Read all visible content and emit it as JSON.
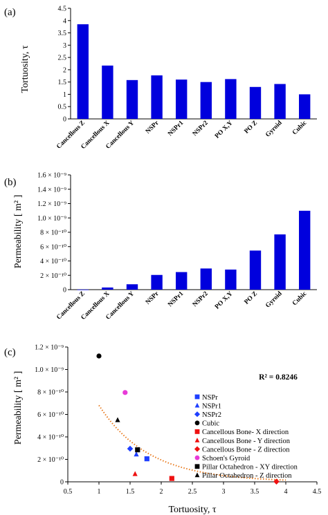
{
  "colors": {
    "bar": "#0000dd",
    "trend": "#e8791c",
    "axis": "#000000"
  },
  "chart_data": [
    {
      "type": "bar",
      "panel_label": "(a)",
      "categories": [
        "Cancellous Z",
        "Cancellous X",
        "Cancellous Y",
        "NSPr",
        "NSPr1",
        "NSPr2",
        "PO X,Y",
        "PO Z",
        "Gyroid",
        "Cubic"
      ],
      "values": [
        3.85,
        2.17,
        1.58,
        1.77,
        1.6,
        1.5,
        1.62,
        1.3,
        1.42,
        1.0
      ],
      "ylabel": "Tortuosity, τ",
      "ylim": [
        0,
        4.5
      ],
      "yticks": [
        "0",
        "0.5",
        "1",
        "1.5",
        "2",
        "2.5",
        "3",
        "3.5",
        "4",
        "4.5"
      ],
      "grid": false
    },
    {
      "type": "bar",
      "panel_label": "(b)",
      "categories": [
        "Cancellous Z",
        "Cancellous X",
        "Cancellous Y",
        "NSPr",
        "NSPr1",
        "NSPr2",
        "PO X,Y",
        "PO Z",
        "Gyroid",
        "Cubic"
      ],
      "values": [
        2e-12,
        3e-11,
        7.5e-11,
        2.05e-10,
        2.45e-10,
        2.95e-10,
        2.8e-10,
        5.45e-10,
        7.7e-10,
        1.1e-09
      ],
      "ylabel": "Permeability [ m² ]",
      "ylim": [
        0,
        1.6e-09
      ],
      "yticks": [
        "0",
        "2 × 10⁻¹⁰",
        "4 × 10⁻¹⁰",
        "6 × 10⁻¹⁰",
        "8 × 10⁻¹⁰",
        "1.0 × 10⁻⁹",
        "1.2 × 10⁻⁹",
        "1.4 × 10⁻⁹",
        "1.6 × 10⁻⁹"
      ],
      "grid": false
    },
    {
      "type": "scatter",
      "panel_label": "(c)",
      "xlabel": "Tortuosity, τ",
      "ylabel": "Permeability [ m² ]",
      "xlim": [
        0.5,
        4.5
      ],
      "ylim": [
        0,
        1.2e-09
      ],
      "xticks": [
        "0.5",
        "1",
        "1.5",
        "2",
        "2.5",
        "3",
        "3.5",
        "4",
        "4.5"
      ],
      "yticks": [
        "0",
        "2 × 10⁻¹⁰",
        "4 × 10⁻¹⁰",
        "6 × 10⁻¹⁰",
        "8 × 10⁻¹⁰",
        "1.0 × 10⁻⁹",
        "1.2 × 10⁻⁹"
      ],
      "annotation": "R² = 0.8246",
      "legend_position": "right",
      "series": [
        {
          "name": "NSPr",
          "marker": "square",
          "color": "#1f3fff",
          "x": 1.77,
          "y": 2.05e-10
        },
        {
          "name": "NSPr1",
          "marker": "triangle",
          "color": "#1f3fff",
          "x": 1.6,
          "y": 2.45e-10
        },
        {
          "name": "NSPr2",
          "marker": "diamond",
          "color": "#1f3fff",
          "x": 1.5,
          "y": 2.95e-10
        },
        {
          "name": "Cubic",
          "marker": "circle",
          "color": "#000000",
          "x": 1.0,
          "y": 1.12e-09
        },
        {
          "name": "Cancellous Bone- X direction",
          "marker": "square",
          "color": "#ee1111",
          "x": 2.17,
          "y": 3e-11
        },
        {
          "name": "Cancellous Bone - Y direction",
          "marker": "triangle",
          "color": "#ee1111",
          "x": 1.58,
          "y": 7e-11
        },
        {
          "name": "Cancellous Bone - Z direction",
          "marker": "diamond",
          "color": "#ee1111",
          "x": 3.85,
          "y": 2e-12
        },
        {
          "name": "Schoen's Gyroid",
          "marker": "circle",
          "color": "#e83ad8",
          "x": 1.42,
          "y": 7.95e-10
        },
        {
          "name": "Pillar Octahedron - XY direction",
          "marker": "square",
          "color": "#000000",
          "x": 1.62,
          "y": 2.85e-10
        },
        {
          "name": "Pillar Octahedron - Z direction",
          "marker": "triangle",
          "color": "#000000",
          "x": 1.3,
          "y": 5.5e-10
        }
      ],
      "trendline": {
        "type": "exponential",
        "style": "dotted",
        "color": "#e8791c",
        "a": 2.39e-09,
        "b": -1.255,
        "x_range": [
          1.0,
          4.0
        ]
      }
    }
  ]
}
